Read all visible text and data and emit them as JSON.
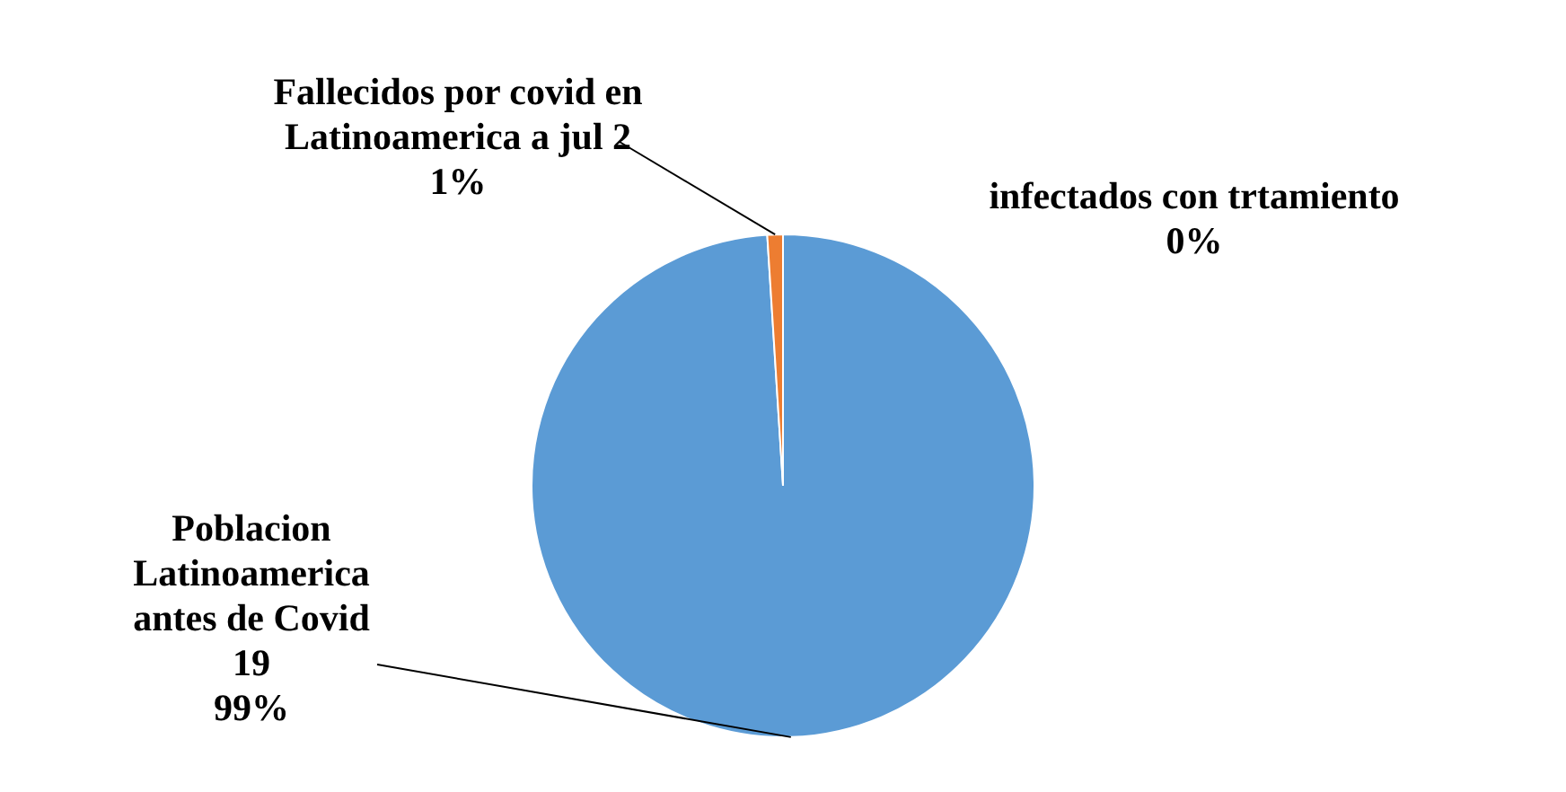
{
  "chart_data": {
    "type": "pie",
    "categories": [
      "Poblacion Latinoamerica antes de Covid 19",
      "Fallecidos por covid en Latinoamerica a jul 2",
      "infectados con trtamiento"
    ],
    "values": [
      99,
      1,
      0
    ],
    "colors": [
      "#5b9bd5",
      "#ed7d31",
      "#a5a5a5"
    ],
    "value_labels": [
      "99%",
      "1%",
      "0%"
    ],
    "legend": false
  }
}
